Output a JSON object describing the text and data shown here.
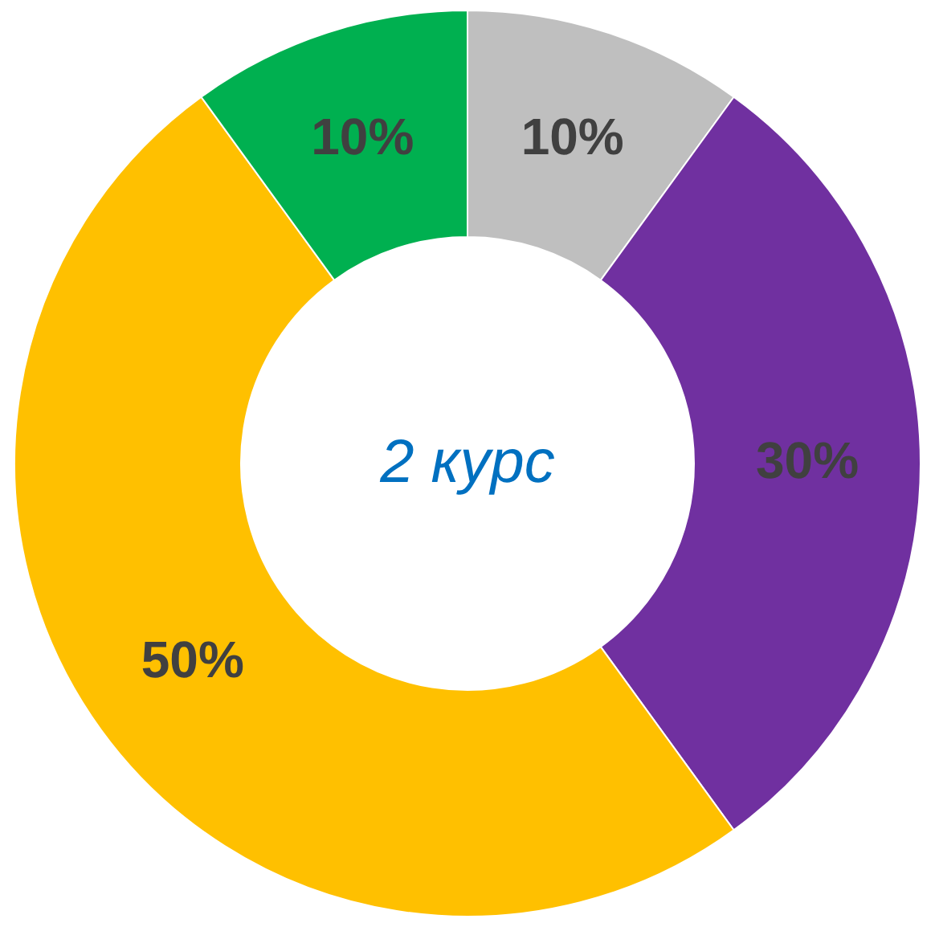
{
  "chart_data": {
    "type": "donut",
    "title": "2 курс",
    "categories": [
      null,
      null,
      null,
      null
    ],
    "values": [
      10,
      30,
      50,
      10
    ],
    "value_labels": [
      "10%",
      "30%",
      "50%",
      "10%"
    ],
    "colors": [
      "#bfbfbf",
      "#7030a0",
      "#ffc000",
      "#00b050"
    ],
    "legend": false
  }
}
